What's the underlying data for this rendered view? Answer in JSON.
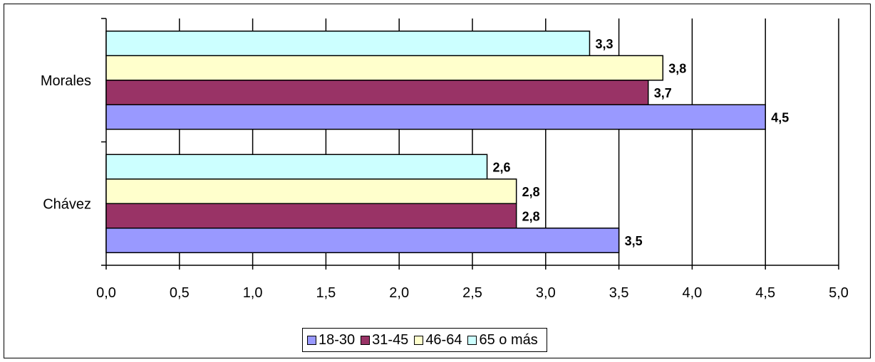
{
  "chart_data": {
    "type": "bar",
    "orientation": "horizontal",
    "categories": [
      "Chávez",
      "Morales"
    ],
    "series": [
      {
        "name": "18-30",
        "values": [
          3.5,
          4.5
        ],
        "labels": [
          "3,5",
          "4,5"
        ],
        "color": "#9999FF"
      },
      {
        "name": "31-45",
        "values": [
          2.8,
          3.7
        ],
        "labels": [
          "2,8",
          "3,7"
        ],
        "color": "#993366"
      },
      {
        "name": "46-64",
        "values": [
          2.8,
          3.8
        ],
        "labels": [
          "2,8",
          "3,8"
        ],
        "color": "#FFFFCC"
      },
      {
        "name": "65 o más",
        "values": [
          2.6,
          3.3
        ],
        "labels": [
          "2,6",
          "3,3"
        ],
        "color": "#CCFFFF"
      }
    ],
    "xlim": [
      0,
      5
    ],
    "xticks": [
      "0,0",
      "0,5",
      "1,0",
      "1,5",
      "2,0",
      "2,5",
      "3,0",
      "3,5",
      "4,0",
      "4,5",
      "5,0"
    ],
    "grid": "vertical",
    "legend_position": "bottom"
  }
}
